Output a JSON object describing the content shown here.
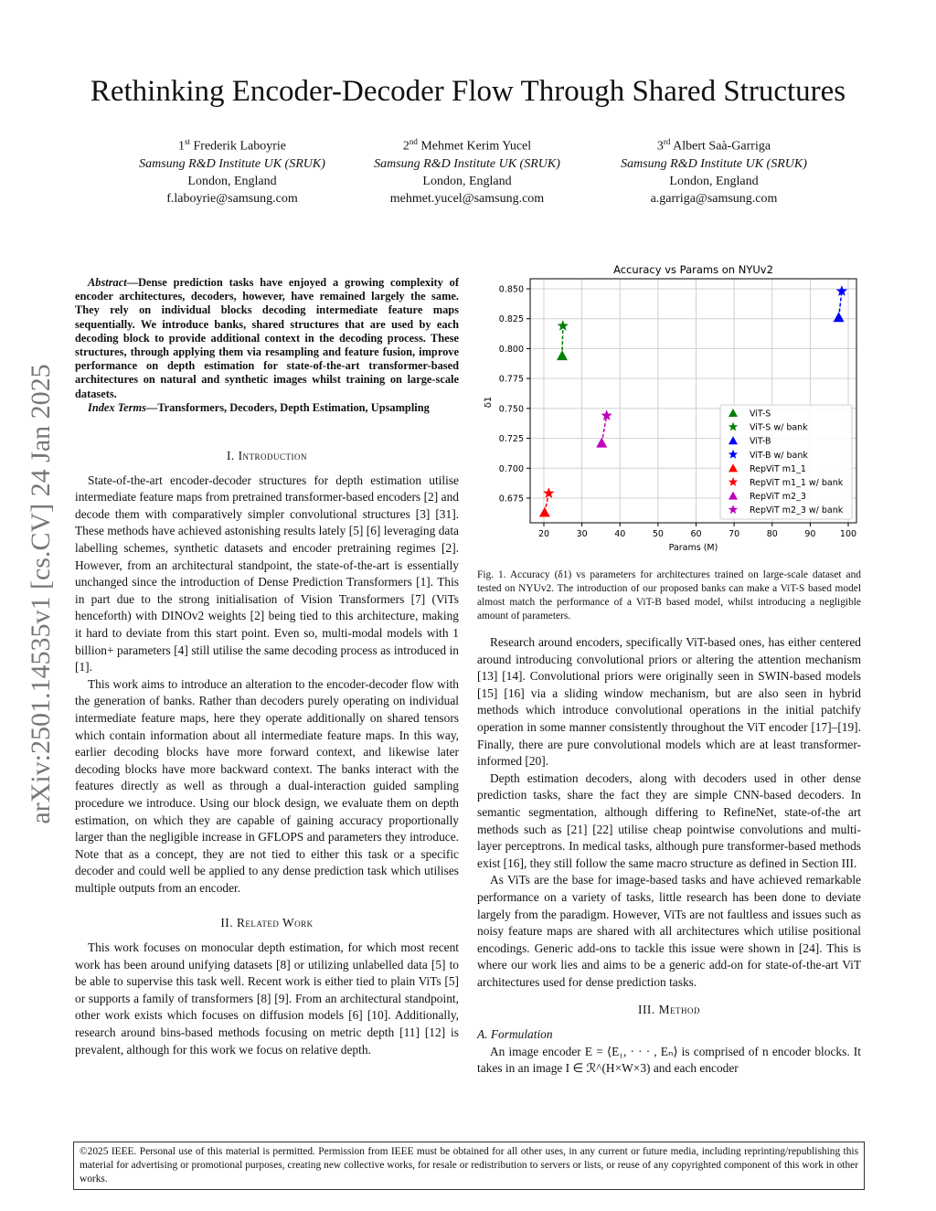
{
  "title": "Rethinking Encoder-Decoder Flow Through Shared Structures",
  "authors": [
    {
      "ord": "1",
      "sup": "st",
      "name": "Frederik Laboyrie",
      "affil": "Samsung R&D Institute UK (SRUK)",
      "loc": "London, England",
      "email": "f.laboyrie@samsung.com"
    },
    {
      "ord": "2",
      "sup": "nd",
      "name": "Mehmet Kerim Yucel",
      "affil": "Samsung R&D Institute UK (SRUK)",
      "loc": "London, England",
      "email": "mehmet.yucel@samsung.com"
    },
    {
      "ord": "3",
      "sup": "rd",
      "name": "Albert Saà-Garriga",
      "affil": "Samsung R&D Institute UK (SRUK)",
      "loc": "London, England",
      "email": "a.garriga@samsung.com"
    }
  ],
  "arxiv_id": "arXiv:2501.14535v1  [cs.CV]  24 Jan 2025",
  "abstract": {
    "label": "Abstract",
    "text": "—Dense prediction tasks have enjoyed a growing complexity of encoder architectures, decoders, however, have remained largely the same. They rely on individual blocks decoding intermediate feature maps sequentially. We introduce banks, shared structures that are used by each decoding block to provide additional context in the decoding process. These structures, through applying them via resampling and feature fusion, improve performance on depth estimation for state-of-the-art transformer-based architectures on natural and synthetic images whilst training on large-scale datasets.",
    "index_label": "Index Terms",
    "index_text": "—Transformers, Decoders, Depth Estimation, Upsampling"
  },
  "sections": {
    "intro_heading": "I. Introduction",
    "intro_p1": "State-of-the-art encoder-decoder structures for depth estimation utilise intermediate feature maps from pretrained transformer-based encoders [2] and decode them with comparatively simpler convolutional structures [3] [31]. These methods have achieved astonishing results lately [5] [6] leveraging data labelling schemes, synthetic datasets and encoder pretraining regimes [2]. However, from an architectural standpoint, the state-of-the-art is essentially unchanged since the introduction of Dense Prediction Transformers [1]. This in part due to the strong initialisation of Vision Transformers [7] (ViTs henceforth) with DINOv2 weights [2] being tied to this architecture, making it hard to deviate from this start point. Even so, multi-modal models with 1 billion+ parameters [4] still utilise the same decoding process as introduced in [1].",
    "intro_p2": "This work aims to introduce an alteration to the encoder-decoder flow with the generation of banks. Rather than decoders purely operating on individual intermediate feature maps, here they operate additionally on shared tensors which contain information about all intermediate feature maps. In this way, earlier decoding blocks have more forward context, and likewise later decoding blocks have more backward context. The banks interact with the features directly as well as through a dual-interaction guided sampling procedure we introduce. Using our block design, we evaluate them on depth estimation, on which they are capable of gaining accuracy proportionally larger than the negligible increase in GFLOPS and parameters they introduce. Note that as a concept, they are not tied to either this task or a specific decoder and could well be applied to any dense prediction task which utilises multiple outputs from an encoder.",
    "related_heading": "II. Related Work",
    "related_p1": "This work focuses on monocular depth estimation, for which most recent work has been around unifying datasets [8] or utilizing unlabelled data [5] to be able to supervise this task well. Recent work is either tied to plain ViTs [5] or supports a family of transformers [8] [9]. From an architectural standpoint, other work exists which focuses on diffusion models [6] [10]. Additionally, research around bins-based methods focusing on metric depth [11] [12] is prevalent, although for this work we focus on relative depth.",
    "fig_caption": "Fig. 1.   Accuracy (δ1) vs parameters for architectures trained on large-scale dataset and tested on NYUv2. The introduction of our proposed banks can make a ViT-S based model almost match the performance of a ViT-B based model, whilst introducing a negligible amount of parameters.",
    "right_p1": "Research around encoders, specifically ViT-based ones, has either centered around introducing convolutional priors or altering the attention mechanism [13] [14]. Convolutional priors were originally seen in SWIN-based models [15] [16] via a sliding window mechanism, but are also seen in hybrid methods which introduce convolutional operations in the initial patchify operation in some manner consistently throughout the ViT encoder [17]–[19]. Finally, there are pure convolutional models which are at least transformer-informed [20].",
    "right_p2": "Depth estimation decoders, along with decoders used in other dense prediction tasks, share the fact they are simple CNN-based decoders. In semantic segmentation, although differing to RefineNet, state-of-the art methods such as [21] [22] utilise cheap pointwise convolutions and multi-layer perceptrons. In medical tasks, although pure transformer-based methods exist [16], they still follow the same macro structure as defined in Section III.",
    "right_p3": "As ViTs are the base for image-based tasks and have achieved remarkable performance on a variety of tasks, little research has been done to deviate largely from the paradigm. However, ViTs are not faultless and issues such as noisy feature maps are shared with all architectures which utilise positional encodings. Generic add-ons to tackle this issue were shown in [24]. This is where our work lies and aims to be a generic add-on for state-of-the-art ViT architectures used for dense prediction tasks.",
    "method_heading": "III. Method",
    "formulation_heading": "A. Formulation",
    "method_p1": "An image encoder E = ⟨E₁, · · · , Eₙ⟩ is comprised of n encoder blocks. It takes in an image I ∈ ℛ^(H×W×3) and each encoder"
  },
  "copyright": "©2025 IEEE. Personal use of this material is permitted. Permission from IEEE must be obtained for all other uses, in any current or future media, including reprinting/republishing this material for advertising or promotional purposes, creating new collective works, for resale or redistribution to servers or lists, or reuse of any copyrighted component of this work in other works.",
  "chart_data": {
    "type": "scatter",
    "title": "Accuracy vs Params on NYUv2",
    "xlabel": "Params (M)",
    "ylabel": "δ1",
    "xlim": [
      16,
      101
    ],
    "ylim": [
      0.655,
      0.857
    ],
    "xticks": [
      20,
      30,
      40,
      50,
      60,
      70,
      80,
      90,
      100
    ],
    "yticks": [
      "0.675",
      "0.700",
      "0.725",
      "0.750",
      "0.775",
      "0.800",
      "0.825",
      "0.850"
    ],
    "grid": true,
    "legend_placement": "lower-right",
    "series": [
      {
        "name": "ViT-S",
        "marker": "triangle",
        "color": "#008000",
        "x": 24.8,
        "y": 0.794
      },
      {
        "name": "ViT-S w/ bank",
        "marker": "star",
        "color": "#008000",
        "x": 25.0,
        "y": 0.819
      },
      {
        "name": "ViT-B",
        "marker": "triangle",
        "color": "#0000ff",
        "x": 97.5,
        "y": 0.826
      },
      {
        "name": "ViT-B w/ bank",
        "marker": "star",
        "color": "#0000ff",
        "x": 98.3,
        "y": 0.848
      },
      {
        "name": "RepViT m1_1",
        "marker": "triangle",
        "color": "#ff0000",
        "x": 20.2,
        "y": 0.663
      },
      {
        "name": "RepViT m1_1 w/ bank",
        "marker": "star",
        "color": "#ff0000",
        "x": 21.3,
        "y": 0.679
      },
      {
        "name": "RepViT m2_3",
        "marker": "triangle",
        "color": "#bf00bf",
        "x": 35.2,
        "y": 0.721
      },
      {
        "name": "RepViT m2_3 w/ bank",
        "marker": "star",
        "color": "#bf00bf",
        "x": 36.5,
        "y": 0.744
      }
    ]
  }
}
